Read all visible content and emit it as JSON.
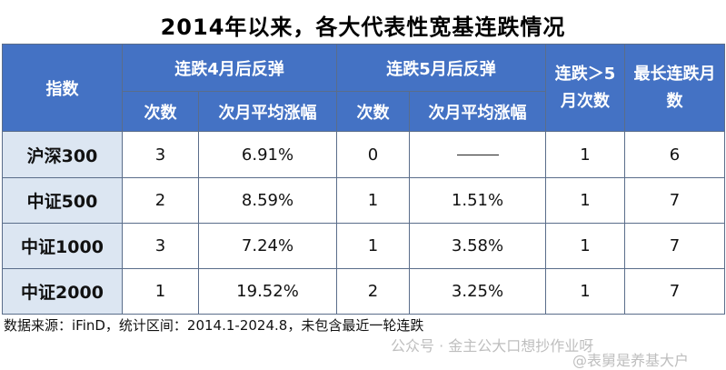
{
  "title": "2014年以来，各大代表性宽基连跌情况",
  "headers": {
    "index": "指数",
    "group4": "连跌4月后反弹",
    "group5": "连跌5月后反弹",
    "times": "次数",
    "avg": "次月平均涨幅",
    "over5": "连跌＞5月次数",
    "longest": "最长连跌月数"
  },
  "rows": [
    {
      "name": "沪深300",
      "c4": "3",
      "a4": "6.91%",
      "c5": "0",
      "a5": "",
      "o5": "1",
      "mx": "6"
    },
    {
      "name": "中证500",
      "c4": "2",
      "a4": "8.59%",
      "c5": "1",
      "a5": "1.51%",
      "o5": "1",
      "mx": "7"
    },
    {
      "name": "中证1000",
      "c4": "3",
      "a4": "7.24%",
      "c5": "1",
      "a5": "3.58%",
      "o5": "1",
      "mx": "7"
    },
    {
      "name": "中证2000",
      "c4": "1",
      "a4": "19.52%",
      "c5": "2",
      "a5": "3.25%",
      "o5": "1",
      "mx": "7"
    }
  ],
  "source": "数据来源：iFinD，统计区间：2014.1-2024.8，未包含最近一轮连跌",
  "watermark1": "公众号 · 金主公大口想抄作业呀",
  "watermark2": "@表舅是养基大户"
}
